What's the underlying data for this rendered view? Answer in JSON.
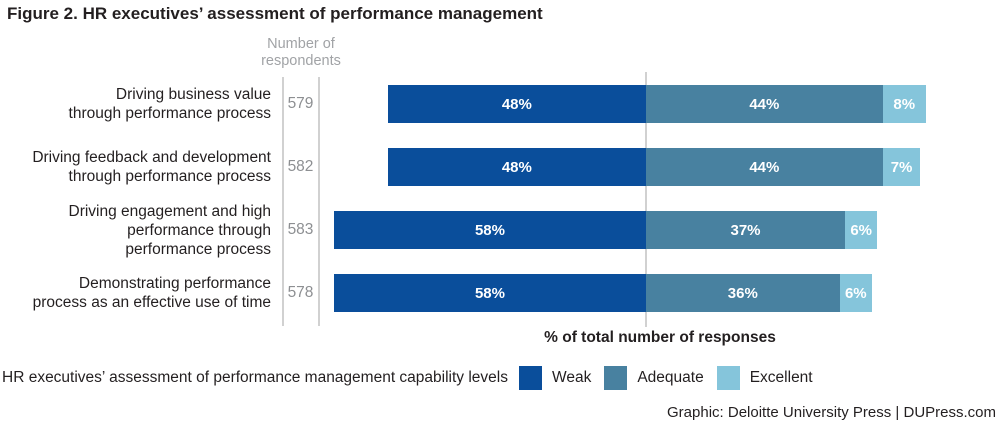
{
  "title": "Figure 2. HR executives’ assessment of performance management",
  "chart_data": {
    "type": "bar",
    "stacked": true,
    "orientation": "horizontal",
    "layout_note": "first segment (Weak) right-aligned to a central gridline; Adequate+Excellent extend right of it",
    "respondents_header": [
      "Number of",
      "respondents"
    ],
    "categories": [
      [
        "Driving business value",
        "through performance process"
      ],
      [
        "Driving feedback and development",
        "through performance process"
      ],
      [
        "Driving engagement and high",
        "performance through",
        "performance process"
      ],
      [
        "Demonstrating performance",
        "process as an effective use of time"
      ]
    ],
    "respondents": [
      579,
      582,
      583,
      578
    ],
    "series": [
      {
        "name": "Weak",
        "color": "#0a4e9b",
        "values": [
          48,
          48,
          58,
          58
        ]
      },
      {
        "name": "Adequate",
        "color": "#4881a0",
        "values": [
          44,
          44,
          37,
          36
        ]
      },
      {
        "name": "Excellent",
        "color": "#85c5db",
        "values": [
          8,
          7,
          6,
          6
        ]
      }
    ],
    "value_suffix": "%",
    "xlabel": "% of total number of responses",
    "grid": "single central vertical gridline plus two vertical rules framing the respondents column"
  },
  "legend": {
    "label": "HR executives’ assessment of performance management capability levels",
    "items": [
      {
        "label": "Weak",
        "color": "#0a4e9b"
      },
      {
        "label": "Adequate",
        "color": "#4881a0"
      },
      {
        "label": "Excellent",
        "color": "#85c5db"
      }
    ]
  },
  "credit": "Graphic: Deloitte University Press  |  DUPress.com",
  "colors": {
    "weak": "#0a4e9b",
    "adequate": "#4881a0",
    "excellent": "#85c5db",
    "grid_line": "#d1d1d1",
    "muted_text": "#8d8f92",
    "text": "#231f20"
  }
}
